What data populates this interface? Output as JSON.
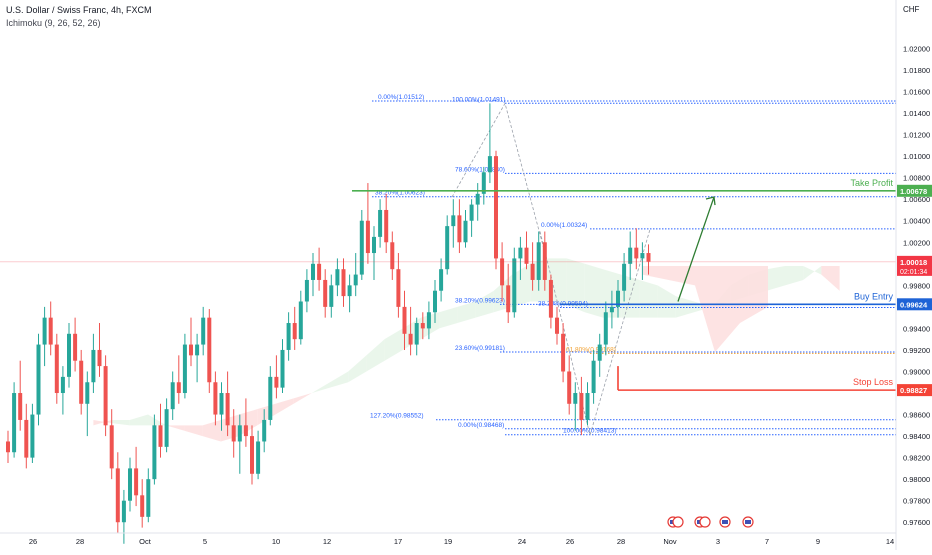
{
  "header": {
    "symbol_line": "U.S. Dollar / Swiss Franc, 4h, FXCM",
    "indicator_line": "Ichimoku (9, 26, 52, 26)"
  },
  "chart_data": {
    "type": "candlestick",
    "title": "U.S. Dollar / Swiss Franc, 4h, FXCM",
    "indicator": "Ichimoku (9, 26, 52, 26)",
    "currency_label": "CHF",
    "ylim": [
      0.975,
      1.0245
    ],
    "y_ticks": [
      "1.02000",
      "1.01800",
      "1.01600",
      "1.01400",
      "1.01200",
      "1.01000",
      "1.00800",
      "1.00600",
      "1.00400",
      "1.00200",
      "0.99800",
      "0.99600",
      "0.99400",
      "0.99200",
      "0.99000",
      "0.98800",
      "0.98600",
      "0.98400",
      "0.98200",
      "0.98000",
      "0.97800",
      "0.97600"
    ],
    "y_tick_values": [
      1.02,
      1.018,
      1.016,
      1.014,
      1.012,
      1.01,
      1.008,
      1.006,
      1.004,
      1.002,
      0.998,
      0.996,
      0.994,
      0.992,
      0.99,
      0.988,
      0.986,
      0.984,
      0.982,
      0.98,
      0.978,
      0.976
    ],
    "x_ticks": [
      "26",
      "28",
      "Oct",
      "5",
      "10",
      "12",
      "17",
      "19",
      "24",
      "26",
      "28",
      "Nov",
      "3",
      "7",
      "9",
      "14"
    ],
    "candles": [
      [
        0.9835,
        0.9845,
        0.9815,
        0.9825
      ],
      [
        0.9825,
        0.989,
        0.982,
        0.988
      ],
      [
        0.988,
        0.991,
        0.9845,
        0.9855
      ],
      [
        0.9855,
        0.987,
        0.981,
        0.982
      ],
      [
        0.982,
        0.987,
        0.9815,
        0.986
      ],
      [
        0.986,
        0.9935,
        0.985,
        0.9925
      ],
      [
        0.9925,
        0.996,
        0.9905,
        0.995
      ],
      [
        0.995,
        0.9965,
        0.9915,
        0.9925
      ],
      [
        0.9925,
        0.9935,
        0.987,
        0.988
      ],
      [
        0.988,
        0.9905,
        0.986,
        0.9895
      ],
      [
        0.9895,
        0.9945,
        0.9885,
        0.9935
      ],
      [
        0.9935,
        0.995,
        0.99,
        0.991
      ],
      [
        0.991,
        0.992,
        0.986,
        0.987
      ],
      [
        0.987,
        0.99,
        0.984,
        0.989
      ],
      [
        0.989,
        0.9935,
        0.988,
        0.992
      ],
      [
        0.992,
        0.9945,
        0.9895,
        0.9905
      ],
      [
        0.9905,
        0.9915,
        0.984,
        0.985
      ],
      [
        0.985,
        0.9865,
        0.98,
        0.981
      ],
      [
        0.981,
        0.9825,
        0.975,
        0.976
      ],
      [
        0.976,
        0.979,
        0.974,
        0.978
      ],
      [
        0.978,
        0.982,
        0.977,
        0.981
      ],
      [
        0.981,
        0.983,
        0.9775,
        0.9785
      ],
      [
        0.9785,
        0.98,
        0.9755,
        0.9765
      ],
      [
        0.9765,
        0.981,
        0.976,
        0.98
      ],
      [
        0.98,
        0.986,
        0.9795,
        0.985
      ],
      [
        0.985,
        0.987,
        0.982,
        0.983
      ],
      [
        0.983,
        0.9875,
        0.9825,
        0.9865
      ],
      [
        0.9865,
        0.99,
        0.9855,
        0.989
      ],
      [
        0.989,
        0.9915,
        0.987,
        0.988
      ],
      [
        0.988,
        0.9935,
        0.9875,
        0.9925
      ],
      [
        0.9925,
        0.995,
        0.9905,
        0.9915
      ],
      [
        0.9915,
        0.9935,
        0.989,
        0.9925
      ],
      [
        0.9925,
        0.996,
        0.9915,
        0.995
      ],
      [
        0.995,
        0.9958,
        0.988,
        0.989
      ],
      [
        0.989,
        0.99,
        0.985,
        0.986
      ],
      [
        0.986,
        0.989,
        0.9845,
        0.988
      ],
      [
        0.988,
        0.99,
        0.984,
        0.985
      ],
      [
        0.985,
        0.9865,
        0.982,
        0.9835
      ],
      [
        0.9835,
        0.986,
        0.9805,
        0.985
      ],
      [
        0.985,
        0.9875,
        0.983,
        0.984
      ],
      [
        0.984,
        0.985,
        0.9795,
        0.9805
      ],
      [
        0.9805,
        0.9845,
        0.98,
        0.9835
      ],
      [
        0.9835,
        0.9865,
        0.9825,
        0.9855
      ],
      [
        0.9855,
        0.9905,
        0.985,
        0.9895
      ],
      [
        0.9895,
        0.9915,
        0.9875,
        0.9885
      ],
      [
        0.9885,
        0.993,
        0.988,
        0.992
      ],
      [
        0.992,
        0.9955,
        0.991,
        0.9945
      ],
      [
        0.9945,
        0.996,
        0.992,
        0.993
      ],
      [
        0.993,
        0.9975,
        0.9925,
        0.9965
      ],
      [
        0.9965,
        0.9995,
        0.9955,
        0.9985
      ],
      [
        0.9985,
        1.001,
        0.997,
        1.0
      ],
      [
        1.0,
        1.0015,
        0.9975,
        0.9985
      ],
      [
        0.9985,
        0.9995,
        0.995,
        0.996
      ],
      [
        0.996,
        0.999,
        0.995,
        0.998
      ],
      [
        0.998,
        1.0005,
        0.997,
        0.9995
      ],
      [
        0.9995,
        1.0005,
        0.996,
        0.997
      ],
      [
        0.997,
        0.999,
        0.9955,
        0.998
      ],
      [
        0.998,
        1.001,
        0.997,
        0.999
      ],
      [
        0.999,
        1.005,
        0.9985,
        1.004
      ],
      [
        1.004,
        1.0075,
        1.0,
        1.001
      ],
      [
        1.001,
        1.0035,
        0.9985,
        1.0025
      ],
      [
        1.0025,
        1.006,
        1.0015,
        1.005
      ],
      [
        1.005,
        1.0065,
        1.001,
        1.002
      ],
      [
        1.002,
        1.003,
        0.9985,
        0.9995
      ],
      [
        0.9995,
        1.001,
        0.995,
        0.996
      ],
      [
        0.996,
        0.9975,
        0.992,
        0.9935
      ],
      [
        0.9935,
        0.996,
        0.9915,
        0.9925
      ],
      [
        0.9925,
        0.995,
        0.9915,
        0.9945
      ],
      [
        0.9945,
        0.9955,
        0.993,
        0.994
      ],
      [
        0.994,
        0.9965,
        0.993,
        0.9955
      ],
      [
        0.9955,
        0.9985,
        0.9945,
        0.9975
      ],
      [
        0.9975,
        1.0005,
        0.9965,
        0.9995
      ],
      [
        0.9995,
        1.0045,
        0.999,
        1.0035
      ],
      [
        1.0035,
        1.006,
        1.0015,
        1.0045
      ],
      [
        1.0045,
        1.006,
        1.001,
        1.002
      ],
      [
        1.002,
        1.005,
        1.0015,
        1.004
      ],
      [
        1.004,
        1.006,
        1.0025,
        1.0055
      ],
      [
        1.0055,
        1.0075,
        1.004,
        1.0065
      ],
      [
        1.0065,
        1.009,
        1.0055,
        1.0085
      ],
      [
        1.0085,
        1.0149,
        1.0075,
        1.01
      ],
      [
        1.01,
        1.0105,
        0.9995,
        1.0005
      ],
      [
        1.0005,
        1.002,
        0.9965,
        0.998
      ],
      [
        0.998,
        1.0,
        0.9945,
        0.9955
      ],
      [
        0.9955,
        1.0015,
        0.995,
        1.0005
      ],
      [
        1.0005,
        1.0025,
        0.9985,
        1.0015
      ],
      [
        1.0015,
        1.003,
        0.9995,
        1.0
      ],
      [
        1.0,
        1.002,
        0.9975,
        0.9985
      ],
      [
        0.9985,
        1.003,
        0.9975,
        1.002
      ],
      [
        1.002,
        1.003,
        0.9975,
        0.9985
      ],
      [
        0.9985,
        0.999,
        0.994,
        0.995
      ],
      [
        0.995,
        0.996,
        0.9925,
        0.9935
      ],
      [
        0.9935,
        0.9945,
        0.989,
        0.99
      ],
      [
        0.99,
        0.9915,
        0.986,
        0.987
      ],
      [
        0.987,
        0.989,
        0.9845,
        0.988
      ],
      [
        0.988,
        0.9895,
        0.9841,
        0.9855
      ],
      [
        0.9855,
        0.989,
        0.985,
        0.988
      ],
      [
        0.988,
        0.992,
        0.987,
        0.991
      ],
      [
        0.991,
        0.9935,
        0.9895,
        0.9925
      ],
      [
        0.9925,
        0.9965,
        0.9915,
        0.9955
      ],
      [
        0.9955,
        0.9975,
        0.994,
        0.996
      ],
      [
        0.996,
        0.9985,
        0.995,
        0.9975
      ],
      [
        0.9975,
        1.001,
        0.9965,
        1.0
      ],
      [
        1.0,
        1.003,
        0.9985,
        1.0015
      ],
      [
        1.0015,
        1.0033,
        0.9995,
        1.0005
      ],
      [
        1.0005,
        1.002,
        0.9985,
        1.001
      ],
      [
        1.001,
        1.0018,
        0.999,
        1.0002
      ]
    ],
    "ichimoku_cloud": {
      "lead_a": [
        0.985,
        0.9855,
        0.9855,
        0.986,
        0.985,
        0.9845,
        0.984,
        0.9835,
        0.984,
        0.985,
        0.986,
        0.987,
        0.988,
        0.989,
        0.99,
        0.9915,
        0.993,
        0.994,
        0.995,
        0.9955,
        0.996,
        0.9965,
        0.9975,
        0.999,
        1.0,
        1.0005,
        1.0005,
        1.0,
        0.9995,
        0.999,
        0.9985,
        0.998,
        0.997,
        0.9965,
        0.996,
        0.998,
        0.999,
        0.9995,
        0.9998,
        0.9998,
        0.999,
        0.9975
      ],
      "lead_b": [
        0.9855,
        0.9852,
        0.985,
        0.985,
        0.985,
        0.985,
        0.985,
        0.9855,
        0.986,
        0.9865,
        0.987,
        0.9875,
        0.988,
        0.9885,
        0.989,
        0.99,
        0.991,
        0.992,
        0.993,
        0.994,
        0.9945,
        0.995,
        0.9955,
        0.996,
        0.9965,
        0.9965,
        0.9962,
        0.9955,
        0.995,
        0.995,
        0.995,
        0.995,
        0.995,
        0.9955,
        0.996,
        0.9965,
        0.997,
        0.9975,
        0.998,
        0.9985,
        0.9998,
        0.9998
      ]
    },
    "price_levels": [
      {
        "name": "Take Profit",
        "value": 1.00678,
        "label": "Take Profit",
        "price_tag": "1.00678",
        "color": "#4caf50"
      },
      {
        "name": "Buy Entry",
        "value": 0.99624,
        "label": "Buy Entry",
        "price_tag": "0.99624",
        "color": "#1e63d6"
      },
      {
        "name": "Stop Loss",
        "value": 0.98827,
        "label": "Stop Loss",
        "price_tag": "0.98827",
        "color": "#f44336"
      }
    ],
    "current_price": {
      "value": 1.00018,
      "price_tag": "1.00018",
      "countdown": "02:01:34",
      "color": "#f23645"
    },
    "fib_levels": [
      {
        "label": "0.00%(1.01512)",
        "value": 1.01512
      },
      {
        "label": "100.00%(1.01491)",
        "value": 1.01491
      },
      {
        "label": "78.60%(1.00840)",
        "value": 1.0084
      },
      {
        "label": "38.20%(1.00623)",
        "value": 1.00623
      },
      {
        "label": "0.00%(1.00324)",
        "value": 1.00324
      },
      {
        "label": "38.20%(0.99623)",
        "value": 0.99623
      },
      {
        "label": "38.20%(0.99594)",
        "value": 0.99594
      },
      {
        "label": "23.60%(0.99181)",
        "value": 0.99181
      },
      {
        "label": "61.80%(0.99168)",
        "value": 0.99168
      },
      {
        "label": "127.20%(0.98552)",
        "value": 0.98552
      },
      {
        "label": "0.00%(0.98468)",
        "value": 0.98468
      },
      {
        "label": "100.00%(0.98413)",
        "value": 0.98413
      }
    ],
    "colors": {
      "up": "#26a69a",
      "down": "#ef5350",
      "cloud_bull": "#e8f5e9",
      "cloud_bear": "#fde0e0",
      "fib": "#2962ff",
      "fib_orange": "#f0a030",
      "grid": "#f0f3fa"
    }
  }
}
